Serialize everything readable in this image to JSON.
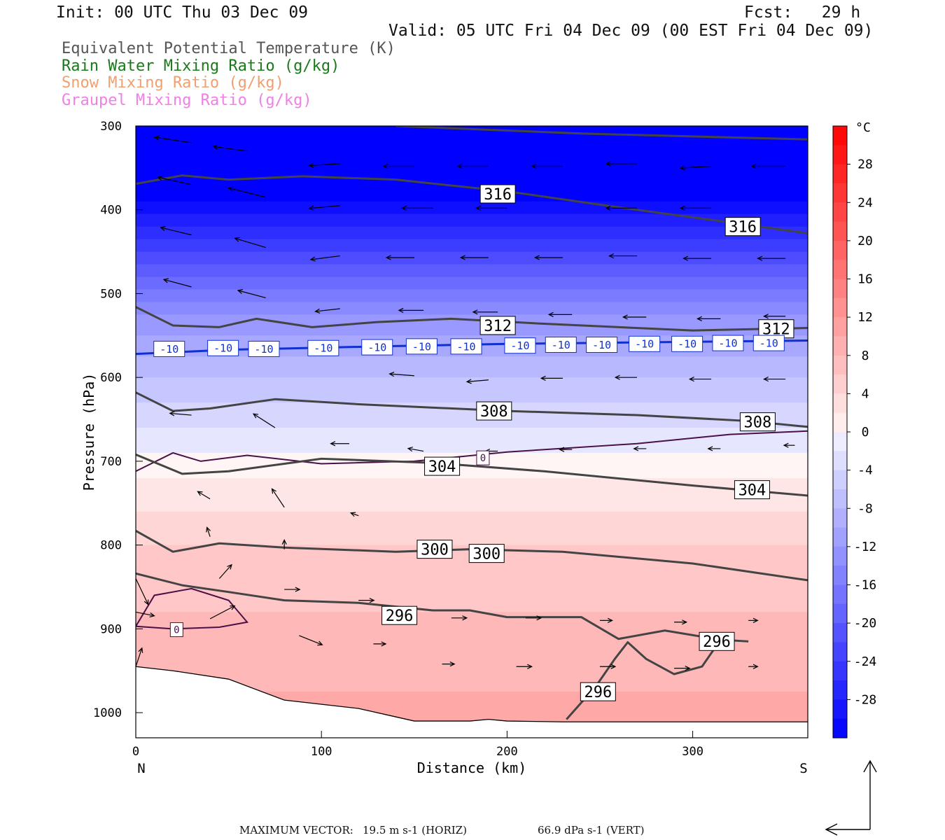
{
  "header": {
    "init": "Init: 00 UTC Thu 03 Dec 09",
    "fcst": "Fcst:   29 h",
    "valid": "Valid: 05 UTC Fri 04 Dec 09 (00 EST Fri 04 Dec 09)"
  },
  "legend": [
    {
      "label": "Equivalent Potential Temperature (K)",
      "color": "#555555"
    },
    {
      "label": "Rain Water Mixing Ratio (g/kg)",
      "color": "#1a7a1a"
    },
    {
      "label": "Snow Mixing Ratio (g/kg)",
      "color": "#f0a070"
    },
    {
      "label": "Graupel Mixing Ratio (g/kg)",
      "color": "#f080e8"
    }
  ],
  "footer": {
    "max_vector_label": "MAXIMUM VECTOR:",
    "horiz": "19.5 m s-1 (HORIZ)",
    "vert": "66.9 dPa s-1 (VERT)"
  },
  "chart_data": {
    "type": "heatmap",
    "xlabel": "Distance (km)",
    "ylabel": "Pressure (hPa)",
    "xlim": [
      0,
      362
    ],
    "ylim": [
      1030,
      300
    ],
    "y_log": false,
    "x_ticks": [
      0,
      100,
      200,
      300
    ],
    "y_ticks": [
      300,
      400,
      500,
      600,
      700,
      800,
      900,
      1000
    ],
    "x_end_labels": {
      "left": "N",
      "right": "S"
    },
    "colorbar": {
      "unit": "°C",
      "ticks": [
        28,
        24,
        20,
        16,
        12,
        8,
        4,
        0,
        -4,
        -8,
        -12,
        -16,
        -20,
        -24,
        -28
      ],
      "range": [
        -32,
        32
      ]
    },
    "temperature_rows": [
      {
        "p": 300,
        "t": -32
      },
      {
        "p": 380,
        "t": -32
      },
      {
        "p": 410,
        "t": -28
      },
      {
        "p": 440,
        "t": -24
      },
      {
        "p": 470,
        "t": -20
      },
      {
        "p": 500,
        "t": -16
      },
      {
        "p": 525,
        "t": -13
      },
      {
        "p": 560,
        "t": -10
      },
      {
        "p": 600,
        "t": -7
      },
      {
        "p": 640,
        "t": -4
      },
      {
        "p": 680,
        "t": -2
      },
      {
        "p": 700,
        "t": 0
      },
      {
        "p": 740,
        "t": 2
      },
      {
        "p": 800,
        "t": 5
      },
      {
        "p": 880,
        "t": 7
      },
      {
        "p": 950,
        "t": 8
      },
      {
        "p": 1000,
        "t": 10
      },
      {
        "p": 1030,
        "t": 11
      }
    ],
    "theta_e_contours": [
      {
        "value": 316,
        "points": [
          [
            140,
            300
          ],
          [
            240,
            309
          ],
          [
            362,
            316
          ]
        ]
      },
      {
        "value": 316,
        "points": [
          [
            0,
            369
          ],
          [
            25,
            359
          ],
          [
            50,
            364
          ],
          [
            90,
            360
          ],
          [
            140,
            364
          ],
          [
            200,
            378
          ],
          [
            260,
            397
          ],
          [
            320,
            415
          ],
          [
            362,
            428
          ]
        ]
      },
      {
        "value": 312,
        "points": [
          [
            0,
            516
          ],
          [
            20,
            538
          ],
          [
            45,
            540
          ],
          [
            65,
            530
          ],
          [
            95,
            540
          ],
          [
            130,
            534
          ],
          [
            170,
            530
          ],
          [
            220,
            536
          ],
          [
            300,
            544
          ],
          [
            362,
            541
          ]
        ]
      },
      {
        "value": 308,
        "points": [
          [
            0,
            618
          ],
          [
            20,
            640
          ],
          [
            40,
            637
          ],
          [
            75,
            626
          ],
          [
            120,
            632
          ],
          [
            200,
            640
          ],
          [
            270,
            645
          ],
          [
            330,
            652
          ],
          [
            362,
            659
          ]
        ]
      },
      {
        "value": 304,
        "points": [
          [
            0,
            692
          ],
          [
            25,
            715
          ],
          [
            50,
            712
          ],
          [
            80,
            703
          ],
          [
            100,
            697
          ],
          [
            160,
            702
          ],
          [
            220,
            712
          ],
          [
            300,
            729
          ],
          [
            362,
            741
          ]
        ]
      },
      {
        "value": 300,
        "points": [
          [
            0,
            783
          ],
          [
            20,
            808
          ],
          [
            45,
            798
          ],
          [
            80,
            803
          ],
          [
            140,
            808
          ],
          [
            180,
            805
          ],
          [
            230,
            808
          ],
          [
            300,
            822
          ],
          [
            362,
            842
          ]
        ]
      },
      {
        "value": 296,
        "points": [
          [
            0,
            834
          ],
          [
            25,
            848
          ],
          [
            50,
            856
          ],
          [
            80,
            866
          ],
          [
            120,
            869
          ],
          [
            160,
            878
          ],
          [
            180,
            878
          ],
          [
            200,
            886
          ],
          [
            240,
            886
          ],
          [
            260,
            912
          ],
          [
            285,
            902
          ],
          [
            315,
            913
          ],
          [
            330,
            915
          ]
        ]
      },
      {
        "value": 296,
        "points": [
          [
            232,
            1008
          ],
          [
            248,
            968
          ],
          [
            258,
            936
          ],
          [
            265,
            916
          ],
          [
            275,
            936
          ],
          [
            290,
            954
          ],
          [
            305,
            945
          ],
          [
            315,
            913
          ]
        ]
      }
    ],
    "zero_isotherm": [
      [
        0,
        712
      ],
      [
        20,
        690
      ],
      [
        35,
        700
      ],
      [
        60,
        693
      ],
      [
        100,
        703
      ],
      [
        150,
        700
      ],
      [
        200,
        689
      ],
      [
        270,
        679
      ],
      [
        320,
        668
      ],
      [
        362,
        664
      ]
    ],
    "zero_isotherm_pocket": [
      [
        0,
        897
      ],
      [
        10,
        860
      ],
      [
        30,
        852
      ],
      [
        50,
        866
      ],
      [
        60,
        892
      ],
      [
        45,
        898
      ],
      [
        20,
        900
      ],
      [
        0,
        897
      ]
    ],
    "minus10_isotherm": [
      [
        0,
        572
      ],
      [
        50,
        567
      ],
      [
        130,
        563
      ],
      [
        200,
        560
      ],
      [
        280,
        558
      ],
      [
        362,
        556
      ]
    ],
    "contour_labels": [
      {
        "text": "316",
        "x": 195,
        "p": 381
      },
      {
        "text": "316",
        "x": 327,
        "p": 420
      },
      {
        "text": "312",
        "x": 195,
        "p": 538
      },
      {
        "text": "312",
        "x": 345,
        "p": 542
      },
      {
        "text": "308",
        "x": 193,
        "p": 640
      },
      {
        "text": "308",
        "x": 335,
        "p": 653
      },
      {
        "text": "304",
        "x": 165,
        "p": 706
      },
      {
        "text": "304",
        "x": 332,
        "p": 734
      },
      {
        "text": "300",
        "x": 161,
        "p": 805
      },
      {
        "text": "300",
        "x": 189,
        "p": 810
      },
      {
        "text": "296",
        "x": 142,
        "p": 884
      },
      {
        "text": "296",
        "x": 313,
        "p": 915
      },
      {
        "text": "296",
        "x": 249,
        "p": 975
      }
    ],
    "minus10_labels": [
      {
        "text": "-10",
        "x": 18,
        "p": 566
      },
      {
        "text": "-10",
        "x": 47,
        "p": 565
      },
      {
        "text": "-10",
        "x": 69,
        "p": 566
      },
      {
        "text": "-10",
        "x": 101,
        "p": 565
      },
      {
        "text": "-10",
        "x": 130,
        "p": 564
      },
      {
        "text": "-10",
        "x": 154,
        "p": 563
      },
      {
        "text": "-10",
        "x": 178,
        "p": 563
      },
      {
        "text": "-10",
        "x": 207,
        "p": 562
      },
      {
        "text": "-10",
        "x": 229,
        "p": 561
      },
      {
        "text": "-10",
        "x": 251,
        "p": 561
      },
      {
        "text": "-10",
        "x": 274,
        "p": 560
      },
      {
        "text": "-10",
        "x": 297,
        "p": 560
      },
      {
        "text": "-10",
        "x": 319,
        "p": 559
      },
      {
        "text": "-10",
        "x": 341,
        "p": 559
      }
    ],
    "zero_labels": [
      {
        "text": "0",
        "x": 187,
        "p": 696
      },
      {
        "text": "0",
        "x": 22,
        "p": 901
      }
    ],
    "wind_vectors": [
      {
        "x": 30,
        "p": 320,
        "dx": -24,
        "dp": -6
      },
      {
        "x": 60,
        "p": 330,
        "dx": -22,
        "dp": -5
      },
      {
        "x": 110,
        "p": 345,
        "dx": -20,
        "dp": 2
      },
      {
        "x": 150,
        "p": 348,
        "dx": -20,
        "dp": 0
      },
      {
        "x": 190,
        "p": 348,
        "dx": -20,
        "dp": 0
      },
      {
        "x": 230,
        "p": 348,
        "dx": -20,
        "dp": 0
      },
      {
        "x": 270,
        "p": 345,
        "dx": -20,
        "dp": 0
      },
      {
        "x": 310,
        "p": 348,
        "dx": -20,
        "dp": 2
      },
      {
        "x": 350,
        "p": 348,
        "dx": -22,
        "dp": 0
      },
      {
        "x": 30,
        "p": 370,
        "dx": -22,
        "dp": -8
      },
      {
        "x": 70,
        "p": 385,
        "dx": -24,
        "dp": -10
      },
      {
        "x": 110,
        "p": 395,
        "dx": -20,
        "dp": 3
      },
      {
        "x": 160,
        "p": 398,
        "dx": -20,
        "dp": 0
      },
      {
        "x": 200,
        "p": 398,
        "dx": -20,
        "dp": 0
      },
      {
        "x": 270,
        "p": 398,
        "dx": -20,
        "dp": 0
      },
      {
        "x": 310,
        "p": 398,
        "dx": -20,
        "dp": 0
      },
      {
        "x": 30,
        "p": 430,
        "dx": -20,
        "dp": -8
      },
      {
        "x": 70,
        "p": 445,
        "dx": -20,
        "dp": -10
      },
      {
        "x": 110,
        "p": 455,
        "dx": -19,
        "dp": 4
      },
      {
        "x": 150,
        "p": 457,
        "dx": -18,
        "dp": 0
      },
      {
        "x": 190,
        "p": 457,
        "dx": -18,
        "dp": 0
      },
      {
        "x": 230,
        "p": 457,
        "dx": -18,
        "dp": 0
      },
      {
        "x": 270,
        "p": 455,
        "dx": -18,
        "dp": 0
      },
      {
        "x": 310,
        "p": 458,
        "dx": -18,
        "dp": 0
      },
      {
        "x": 350,
        "p": 458,
        "dx": -18,
        "dp": 0
      },
      {
        "x": 30,
        "p": 492,
        "dx": -18,
        "dp": -8
      },
      {
        "x": 70,
        "p": 505,
        "dx": -18,
        "dp": -8
      },
      {
        "x": 110,
        "p": 518,
        "dx": -16,
        "dp": 3
      },
      {
        "x": 155,
        "p": 520,
        "dx": -16,
        "dp": 0
      },
      {
        "x": 195,
        "p": 522,
        "dx": -16,
        "dp": 0
      },
      {
        "x": 235,
        "p": 525,
        "dx": -15,
        "dp": 0
      },
      {
        "x": 275,
        "p": 528,
        "dx": -15,
        "dp": 0
      },
      {
        "x": 315,
        "p": 530,
        "dx": -15,
        "dp": 0
      },
      {
        "x": 350,
        "p": 527,
        "dx": -14,
        "dp": 0
      },
      {
        "x": 75,
        "p": 570,
        "dx": -14,
        "dp": -4
      },
      {
        "x": 150,
        "p": 598,
        "dx": -16,
        "dp": -2
      },
      {
        "x": 190,
        "p": 603,
        "dx": -14,
        "dp": 2
      },
      {
        "x": 230,
        "p": 601,
        "dx": -14,
        "dp": 0
      },
      {
        "x": 270,
        "p": 600,
        "dx": -14,
        "dp": 0
      },
      {
        "x": 310,
        "p": 602,
        "dx": -14,
        "dp": 0
      },
      {
        "x": 350,
        "p": 602,
        "dx": -14,
        "dp": 0
      },
      {
        "x": 30,
        "p": 645,
        "dx": -14,
        "dp": -2
      },
      {
        "x": 75,
        "p": 660,
        "dx": -14,
        "dp": -15
      },
      {
        "x": 115,
        "p": 679,
        "dx": -12,
        "dp": 0
      },
      {
        "x": 155,
        "p": 688,
        "dx": -10,
        "dp": -3
      },
      {
        "x": 195,
        "p": 688,
        "dx": -8,
        "dp": 0
      },
      {
        "x": 235,
        "p": 686,
        "dx": -8,
        "dp": 0
      },
      {
        "x": 275,
        "p": 685,
        "dx": -8,
        "dp": 0
      },
      {
        "x": 315,
        "p": 685,
        "dx": -8,
        "dp": 0
      },
      {
        "x": 355,
        "p": 681,
        "dx": -7,
        "dp": 0
      },
      {
        "x": 40,
        "p": 745,
        "dx": -8,
        "dp": -8
      },
      {
        "x": 80,
        "p": 755,
        "dx": -8,
        "dp": -20
      },
      {
        "x": 120,
        "p": 765,
        "dx": -5,
        "dp": -3
      },
      {
        "x": 40,
        "p": 790,
        "dx": -2,
        "dp": -10
      },
      {
        "x": 80,
        "p": 805,
        "dx": 0,
        "dp": -10
      },
      {
        "x": 45,
        "p": 840,
        "dx": 8,
        "dp": -15
      },
      {
        "x": 0,
        "p": 880,
        "dx": 12,
        "dp": 4
      },
      {
        "x": 40,
        "p": 888,
        "dx": 16,
        "dp": -14
      },
      {
        "x": 88,
        "p": 908,
        "dx": 15,
        "dp": 10
      },
      {
        "x": 128,
        "p": 918,
        "dx": 8,
        "dp": 0
      },
      {
        "x": 0,
        "p": 840,
        "dx": 8,
        "dp": 28
      },
      {
        "x": 80,
        "p": 853,
        "dx": 10,
        "dp": 0
      },
      {
        "x": 120,
        "p": 866,
        "dx": 10,
        "dp": 0
      },
      {
        "x": 170,
        "p": 887,
        "dx": 10,
        "dp": 0
      },
      {
        "x": 210,
        "p": 887,
        "dx": 10,
        "dp": 0
      },
      {
        "x": 250,
        "p": 890,
        "dx": 8,
        "dp": 0
      },
      {
        "x": 290,
        "p": 892,
        "dx": 8,
        "dp": 0
      },
      {
        "x": 330,
        "p": 890,
        "dx": 6,
        "dp": 0
      },
      {
        "x": 165,
        "p": 942,
        "dx": 8,
        "dp": 0
      },
      {
        "x": 205,
        "p": 945,
        "dx": 10,
        "dp": 0
      },
      {
        "x": 250,
        "p": 945,
        "dx": 10,
        "dp": 0
      },
      {
        "x": 290,
        "p": 947,
        "dx": 10,
        "dp": 0
      },
      {
        "x": 330,
        "p": 945,
        "dx": 6,
        "dp": 0
      },
      {
        "x": 0,
        "p": 945,
        "dx": 4,
        "dp": -20
      }
    ],
    "terrain": [
      [
        0,
        945
      ],
      [
        20,
        950
      ],
      [
        50,
        960
      ],
      [
        80,
        985
      ],
      [
        100,
        990
      ],
      [
        120,
        995
      ],
      [
        140,
        1005
      ],
      [
        150,
        1010
      ],
      [
        180,
        1010
      ],
      [
        190,
        1008
      ],
      [
        200,
        1010
      ],
      [
        230,
        1011
      ],
      [
        362,
        1011
      ]
    ]
  }
}
